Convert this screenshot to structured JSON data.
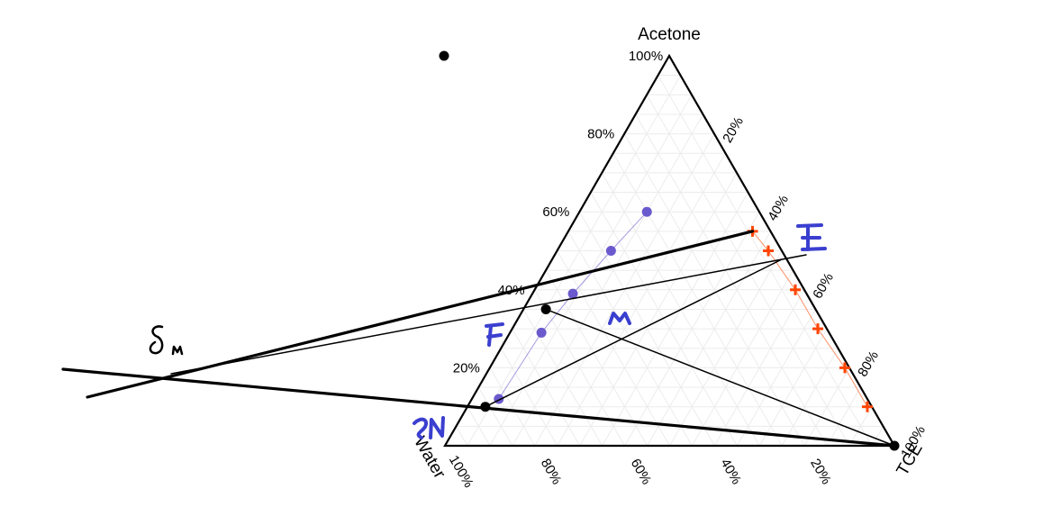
{
  "chart_data": {
    "type": "ternary",
    "axes": {
      "top": "Acetone",
      "left": "Water",
      "right": "TCE"
    },
    "tick_labels": [
      "20%",
      "40%",
      "60%",
      "80%",
      "100%"
    ],
    "grid": true,
    "series": [
      {
        "marker": "circle",
        "color": "#6a5acd",
        "points": [
          {
            "acetone": 0.12,
            "water": 0.82,
            "tce": 0.06
          },
          {
            "acetone": 0.29,
            "water": 0.64,
            "tce": 0.07
          },
          {
            "acetone": 0.39,
            "water": 0.52,
            "tce": 0.09
          },
          {
            "acetone": 0.5,
            "water": 0.38,
            "tce": 0.12
          },
          {
            "acetone": 0.6,
            "water": 0.25,
            "tce": 0.15
          }
        ]
      },
      {
        "marker": "plus",
        "color": "#ff4500",
        "points": [
          {
            "acetone": 0.1,
            "water": 0.01,
            "tce": 0.89
          },
          {
            "acetone": 0.2,
            "water": 0.01,
            "tce": 0.79
          },
          {
            "acetone": 0.3,
            "water": 0.02,
            "tce": 0.68
          },
          {
            "acetone": 0.4,
            "water": 0.02,
            "tce": 0.58
          },
          {
            "acetone": 0.5,
            "water": 0.03,
            "tce": 0.47
          },
          {
            "acetone": 0.55,
            "water": 0.04,
            "tce": 0.41
          }
        ]
      }
    ],
    "key_points": [
      {
        "acetone": 0.1,
        "water": 0.86,
        "tce": 0.04
      },
      {
        "acetone": 0.35,
        "water": 0.6,
        "tce": 0.05
      },
      {
        "acetone": 0.0,
        "water": 0.0,
        "tce": 1.0
      }
    ],
    "stray_point": true,
    "handwritten_labels": [
      "E",
      "M",
      "F",
      "RN",
      "Δm"
    ]
  }
}
